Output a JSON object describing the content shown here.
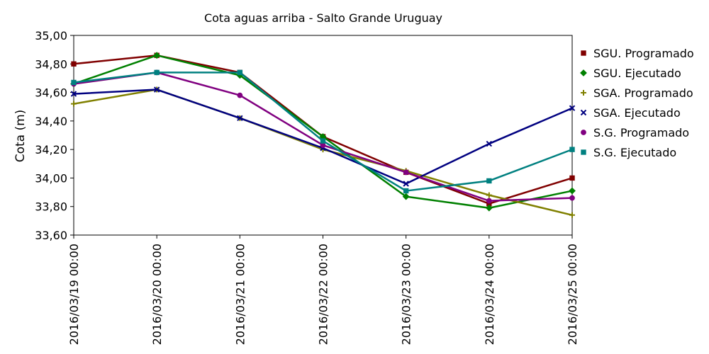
{
  "chart_data": {
    "type": "line",
    "title": "Cota aguas arriba - Salto Grande Uruguay",
    "xlabel": "",
    "ylabel": "Cota (m)",
    "ylim": [
      33.6,
      35.0
    ],
    "yticks": [
      "33,60",
      "33,80",
      "34,00",
      "34,20",
      "34,40",
      "34,60",
      "34,80",
      "35,00"
    ],
    "ytick_values": [
      33.6,
      33.8,
      34.0,
      34.2,
      34.4,
      34.6,
      34.8,
      35.0
    ],
    "categories": [
      "2016/03/19 00:00",
      "2016/03/20 00:00",
      "2016/03/21 00:00",
      "2016/03/22 00:00",
      "2016/03/23 00:00",
      "2016/03/24 00:00",
      "2016/03/25 00:00"
    ],
    "grid": false,
    "legend_position": "right",
    "series": [
      {
        "name": "SGU. Programado",
        "color": "#800000",
        "marker": "square",
        "values": [
          34.8,
          34.86,
          34.74,
          34.29,
          34.04,
          33.82,
          34.0
        ]
      },
      {
        "name": "SGU. Ejecutado",
        "color": "#008000",
        "marker": "diamond",
        "values": [
          34.66,
          34.86,
          34.72,
          34.29,
          33.87,
          33.79,
          33.91
        ]
      },
      {
        "name": "SGA. Programado",
        "color": "#808000",
        "marker": "plus",
        "values": [
          34.52,
          34.62,
          34.42,
          34.2,
          34.05,
          33.88,
          33.74
        ]
      },
      {
        "name": "SGA. Ejecutado",
        "color": "#000080",
        "marker": "x",
        "values": [
          34.59,
          34.62,
          34.42,
          34.21,
          33.96,
          34.24,
          34.49
        ]
      },
      {
        "name": "S.G. Programado",
        "color": "#800080",
        "marker": "circle",
        "values": [
          34.66,
          34.74,
          34.58,
          34.23,
          34.04,
          33.84,
          33.86
        ]
      },
      {
        "name": "S.G. Ejecutado",
        "color": "#008080",
        "marker": "square",
        "values": [
          34.67,
          34.74,
          34.74,
          34.26,
          33.91,
          33.98,
          34.2
        ]
      }
    ]
  }
}
